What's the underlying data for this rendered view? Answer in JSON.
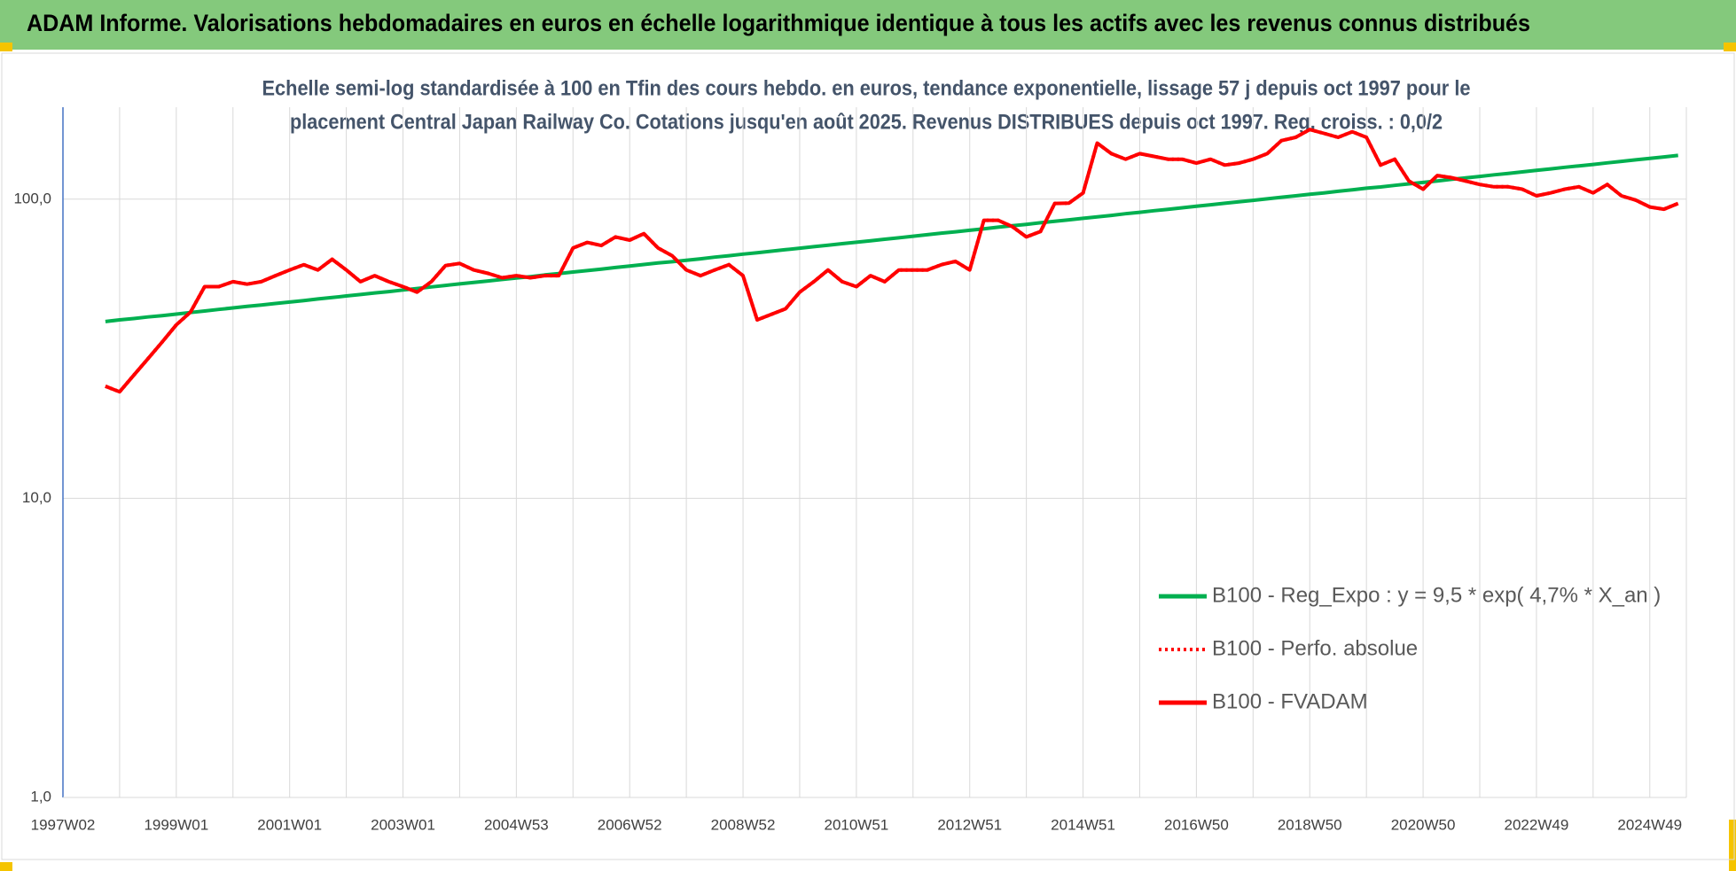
{
  "chart_data": {
    "type": "line",
    "title": "ADAM Informe. Valorisations hebdomadaires en euros en échelle logarithmique identique à tous les actifs avec les revenus connus distribués",
    "subtitle": [
      "Echelle semi-log standardisée à 100 en Tfin des cours hebdo. en euros, tendance exponentielle, lissage 57 j depuis oct 1997 pour le",
      "placement Central Japan Railway Co. Cotations jusqu'en août 2025. Revenus DISTRIBUES depuis oct 1997. Reg. croiss. : 0,0/2"
    ],
    "categories": [
      "1997W02",
      null,
      null,
      null,
      null,
      null,
      null,
      null,
      "1999W01",
      null,
      null,
      null,
      null,
      null,
      null,
      null,
      "2001W01",
      null,
      null,
      null,
      null,
      null,
      null,
      null,
      "2003W01",
      null,
      null,
      null,
      null,
      null,
      null,
      null,
      "2004W53",
      null,
      null,
      null,
      null,
      null,
      null,
      null,
      "2006W52",
      null,
      null,
      null,
      null,
      null,
      null,
      null,
      "2008W52",
      null,
      null,
      null,
      null,
      null,
      null,
      null,
      "2010W51",
      null,
      null,
      null,
      null,
      null,
      null,
      null,
      "2012W51",
      null,
      null,
      null,
      null,
      null,
      null,
      null,
      "2014W51",
      null,
      null,
      null,
      null,
      null,
      null,
      null,
      "2016W50",
      null,
      null,
      null,
      null,
      null,
      null,
      null,
      "2018W50",
      null,
      null,
      null,
      null,
      null,
      null,
      null,
      "2020W50",
      null,
      null,
      null,
      null,
      null,
      null,
      null,
      "2022W49",
      null,
      null,
      null,
      null,
      null,
      null,
      null,
      "2024W49",
      null,
      null
    ],
    "series": [
      {
        "name": "B100 - Reg_Expo : y = 9,5 * exp( 4,7% *  X_an )",
        "color": "#00b050",
        "style": "solid",
        "values": [
          null,
          null,
          null,
          39.0,
          39.5,
          39.9,
          40.4,
          40.8,
          41.3,
          41.8,
          42.3,
          42.8,
          43.3,
          43.8,
          44.3,
          44.8,
          45.3,
          45.8,
          46.4,
          46.9,
          47.5,
          48.0,
          48.6,
          49.1,
          49.7,
          50.3,
          50.9,
          51.5,
          52.1,
          52.7,
          53.3,
          53.9,
          54.5,
          55.1,
          55.8,
          56.4,
          57.1,
          57.7,
          58.4,
          59.1,
          59.8,
          60.5,
          61.2,
          61.8,
          62.5,
          63.2,
          64.0,
          64.7,
          65.5,
          66.2,
          67.0,
          67.8,
          68.6,
          69.4,
          70.2,
          71.0,
          71.8,
          72.6,
          73.5,
          74.3,
          75.2,
          76.1,
          77.0,
          77.8,
          78.7,
          79.6,
          80.6,
          81.5,
          82.4,
          83.4,
          84.4,
          85.3,
          86.3,
          87.3,
          88.3,
          89.4,
          90.4,
          91.5,
          92.5,
          93.6,
          94.7,
          95.8,
          96.9,
          98.0,
          99.1,
          100.3,
          101.5,
          102.6,
          103.8,
          105.0,
          106.3,
          107.5,
          108.8,
          109.9,
          111.2,
          112.5,
          113.8,
          115.1,
          116.5,
          117.8,
          119.2,
          120.6,
          122.0,
          123.4,
          124.8,
          126.3,
          127.8,
          129.2,
          130.7,
          132.3,
          133.8,
          135.4,
          136.9,
          138.5,
          140.1
        ]
      },
      {
        "name": "B100 - Perfo. absolue",
        "color": "#ff0000",
        "style": "dotted",
        "values": [
          null,
          null,
          null,
          23.7,
          22.7,
          25.8,
          29.3,
          33.3,
          38,
          41.9,
          51,
          51,
          53,
          52,
          53,
          55.5,
          58,
          60.4,
          58,
          63,
          58,
          53,
          55.5,
          53,
          51,
          48.9,
          53,
          60,
          61,
          58,
          56.5,
          54.6,
          55.5,
          54.6,
          55.5,
          55.5,
          68.7,
          71.7,
          70,
          74.8,
          73,
          76.7,
          68.7,
          64.7,
          58,
          55.5,
          58,
          60.4,
          55.5,
          39.5,
          41.2,
          43,
          48.9,
          53,
          58,
          53,
          51,
          55.5,
          53,
          58,
          58,
          58,
          60.4,
          62,
          58,
          85,
          85,
          81,
          74.8,
          78,
          96.8,
          97,
          105,
          154,
          142,
          136,
          142,
          139,
          136,
          136,
          132,
          136,
          130,
          132,
          136,
          142,
          157,
          161,
          171,
          166,
          161,
          168,
          161,
          130,
          136,
          115,
          108,
          120,
          118,
          115,
          112,
          110,
          110,
          108,
          102.6,
          105,
          108,
          110,
          105,
          112,
          102.6,
          99.3,
          94.2,
          92.6,
          96.8
        ]
      },
      {
        "name": "B100 - FVADAM",
        "color": "#ff0000",
        "style": "solid",
        "values": [
          null,
          null,
          null,
          23.7,
          22.7,
          25.8,
          29.3,
          33.3,
          38,
          41.9,
          51,
          51,
          53,
          52,
          53,
          55.5,
          58,
          60.4,
          58,
          63,
          58,
          53,
          55.5,
          53,
          51,
          48.9,
          53,
          60,
          61,
          58,
          56.5,
          54.6,
          55.5,
          54.6,
          55.5,
          55.5,
          68.7,
          71.7,
          70,
          74.8,
          73,
          76.7,
          68.7,
          64.7,
          58,
          55.5,
          58,
          60.4,
          55.5,
          39.5,
          41.2,
          43,
          48.9,
          53,
          58,
          53,
          51,
          55.5,
          53,
          58,
          58,
          58,
          60.4,
          62,
          58,
          85,
          85,
          81,
          74.8,
          78,
          96.8,
          97,
          105,
          154,
          142,
          136,
          142,
          139,
          136,
          136,
          132,
          136,
          130,
          132,
          136,
          142,
          157,
          161,
          171,
          166,
          161,
          168,
          161,
          130,
          136,
          115,
          108,
          120,
          118,
          115,
          112,
          110,
          110,
          108,
          102.6,
          105,
          108,
          110,
          105,
          112,
          102.6,
          99.3,
          94.2,
          92.6,
          96.8
        ]
      }
    ],
    "ylim": [
      1,
      203
    ],
    "yticks": [
      {
        "value": 1,
        "label": "1,0"
      },
      {
        "value": 10,
        "label": "10,0"
      },
      {
        "value": 100,
        "label": "100,0"
      }
    ],
    "log_scale": true,
    "grid": true,
    "legend_position": "lower right"
  }
}
